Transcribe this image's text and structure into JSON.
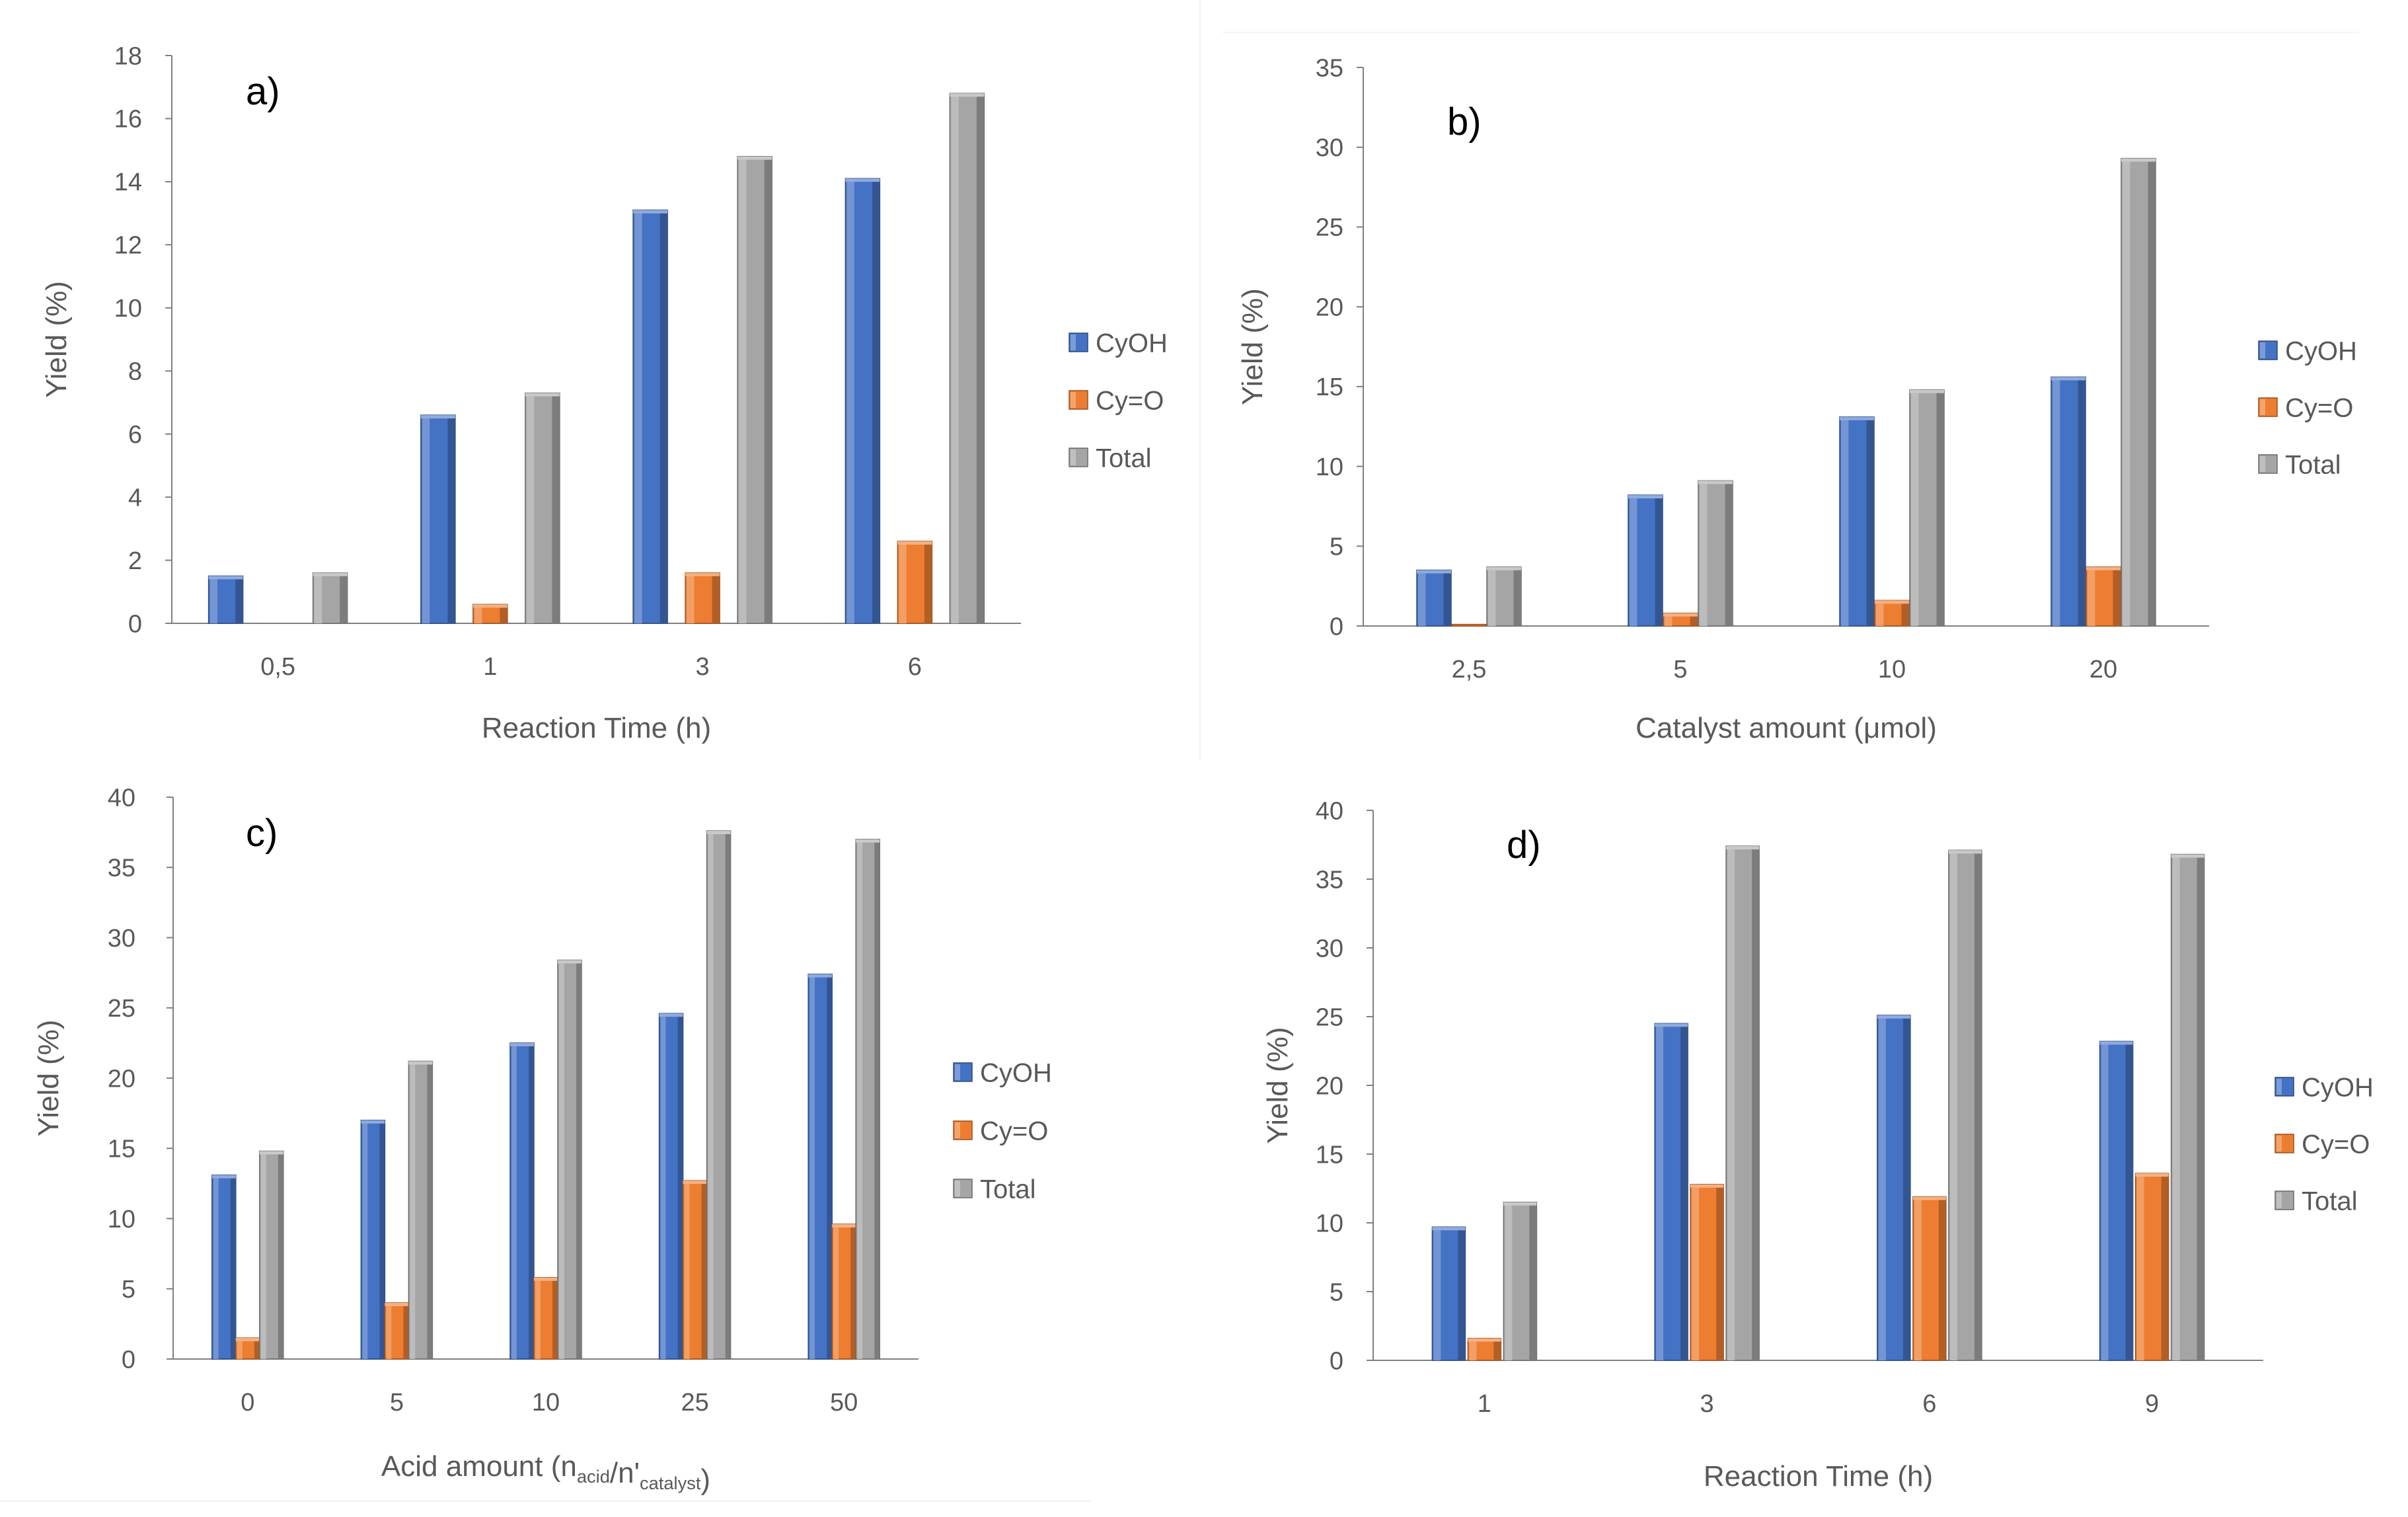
{
  "colors": {
    "CyOH": "#4472c4",
    "Cy=O": "#ed7d31",
    "Total": "#a5a5a5",
    "axis": "#808080",
    "text": "#595959",
    "label": "#000000"
  },
  "chart_data": [
    {
      "type": "bar",
      "panel_label": "a)",
      "title": "",
      "xlabel": "Reaction Time (h)",
      "ylabel": "Yield (%)",
      "categories": [
        "0,5",
        "1",
        "3",
        "6"
      ],
      "ylim": [
        0,
        18
      ],
      "yticks": [
        0,
        2,
        4,
        6,
        8,
        10,
        12,
        14,
        16,
        18
      ],
      "legend_position": "right",
      "series": [
        {
          "name": "CyOH",
          "values": [
            1.5,
            6.6,
            13.1,
            14.1
          ]
        },
        {
          "name": "Cy=O",
          "values": [
            0,
            0.6,
            1.6,
            2.6
          ]
        },
        {
          "name": "Total",
          "values": [
            1.6,
            7.3,
            14.8,
            16.8
          ]
        }
      ]
    },
    {
      "type": "bar",
      "panel_label": "b)",
      "title": "",
      "xlabel": "Catalyst amount (μmol)",
      "ylabel": "Yield (%)",
      "categories": [
        "2,5",
        "5",
        "10",
        "20"
      ],
      "ylim": [
        0,
        35
      ],
      "yticks": [
        0,
        5,
        10,
        15,
        20,
        25,
        30,
        35
      ],
      "legend_position": "right",
      "series": [
        {
          "name": "CyOH",
          "values": [
            3.5,
            8.2,
            13.1,
            15.6
          ]
        },
        {
          "name": "Cy=O",
          "values": [
            0.1,
            0.8,
            1.6,
            3.7
          ]
        },
        {
          "name": "Total",
          "values": [
            3.7,
            9.1,
            14.8,
            29.3
          ]
        }
      ]
    },
    {
      "type": "bar",
      "panel_label": "c)",
      "title": "",
      "xlabel": "Acid amount (nacid/n'catalyst)",
      "xlabel_parts": {
        "pre": "Acid amount (n",
        "sub1": "acid",
        "mid": "/n'",
        "sub2": "catalyst",
        "post": ")"
      },
      "ylabel": "Yield (%)",
      "categories": [
        "0",
        "5",
        "10",
        "25",
        "50"
      ],
      "ylim": [
        0,
        40
      ],
      "yticks": [
        0,
        5,
        10,
        15,
        20,
        25,
        30,
        35,
        40
      ],
      "legend_position": "right",
      "series": [
        {
          "name": "CyOH",
          "values": [
            13.1,
            17.0,
            22.5,
            24.6,
            27.4
          ]
        },
        {
          "name": "Cy=O",
          "values": [
            1.5,
            4.0,
            5.8,
            12.7,
            9.6
          ]
        },
        {
          "name": "Total",
          "values": [
            14.8,
            21.2,
            28.4,
            37.6,
            37.0
          ]
        }
      ]
    },
    {
      "type": "bar",
      "panel_label": "d)",
      "title": "",
      "xlabel": "Reaction Time (h)",
      "ylabel": "Yield (%)",
      "categories": [
        "1",
        "3",
        "6",
        "9"
      ],
      "ylim": [
        0,
        40
      ],
      "yticks": [
        0,
        5,
        10,
        15,
        20,
        25,
        30,
        35,
        40
      ],
      "legend_position": "right",
      "series": [
        {
          "name": "CyOH",
          "values": [
            9.7,
            24.5,
            25.1,
            23.2
          ]
        },
        {
          "name": "Cy=O",
          "values": [
            1.6,
            12.8,
            11.9,
            13.6
          ]
        },
        {
          "name": "Total",
          "values": [
            11.5,
            37.4,
            37.1,
            36.8
          ]
        }
      ]
    }
  ]
}
